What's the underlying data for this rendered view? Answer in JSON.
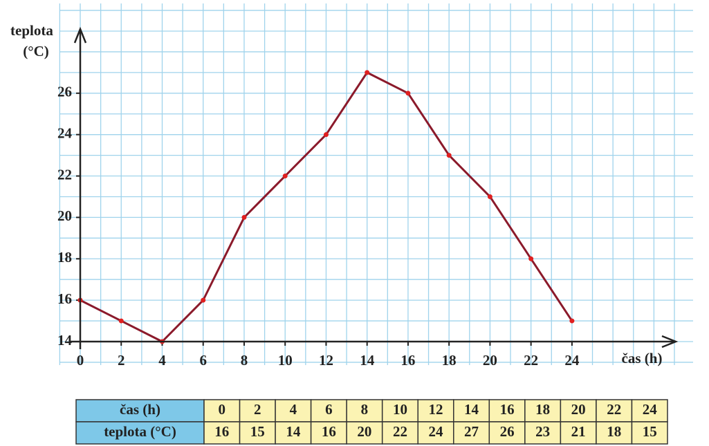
{
  "chart_data": {
    "type": "line",
    "y_label": "teplota",
    "y_unit": "(°C)",
    "x_label": "čas (h)",
    "x": [
      0,
      2,
      4,
      6,
      8,
      10,
      12,
      14,
      16,
      18,
      20,
      22,
      24
    ],
    "values": [
      16,
      15,
      14,
      16,
      20,
      22,
      24,
      27,
      26,
      23,
      21,
      18,
      15
    ],
    "color": "#8b1a2b",
    "marker_color": "#e02020",
    "xlim": [
      0,
      29
    ],
    "ylim": [
      14,
      29
    ],
    "xticks": [
      0,
      2,
      4,
      6,
      8,
      10,
      12,
      14,
      16,
      18,
      20,
      22,
      24
    ],
    "yticks": [
      14,
      16,
      18,
      20,
      22,
      24,
      26
    ],
    "grid": true
  },
  "table": {
    "row_labels": [
      "čas (h)",
      "teplota (°C)"
    ]
  }
}
